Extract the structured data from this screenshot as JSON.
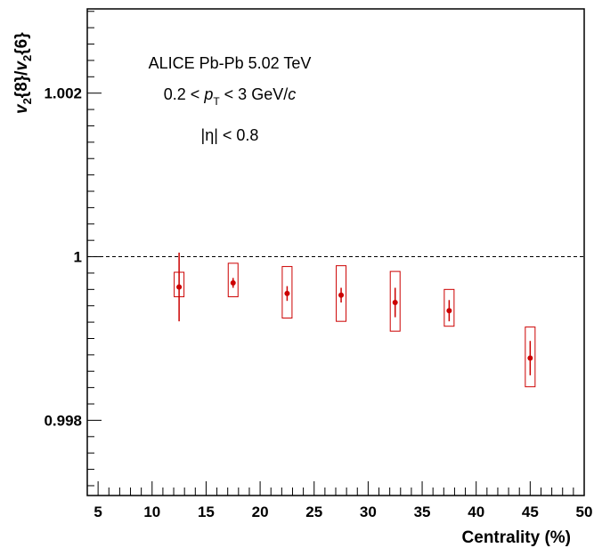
{
  "chart_data": {
    "type": "scatter",
    "xlabel": "Centrality (%)",
    "ylabel_parts": {
      "v1": "v",
      "sub1": "2",
      "arg1": "{8}/",
      "v2": "v",
      "sub2": "2",
      "arg2": "{6}"
    },
    "xlim": [
      4,
      50
    ],
    "ylim": [
      0.99708,
      1.00303
    ],
    "x_ticks": [
      5,
      10,
      15,
      20,
      25,
      30,
      35,
      40,
      45,
      50
    ],
    "x_tick_labels": [
      "5",
      "10",
      "15",
      "20",
      "25",
      "30",
      "35",
      "40",
      "45",
      "50"
    ],
    "y_ticks": [
      0.998,
      1,
      1.002
    ],
    "y_tick_labels": [
      "0.998",
      "1",
      "1.002"
    ],
    "reference_line": {
      "y": 1,
      "style": "dashed"
    },
    "annotations": {
      "line1": "ALICE Pb-Pb 5.02 TeV",
      "line2_pre": "0.2 < ",
      "line2_p": "p",
      "line2_sub": "T",
      "line2_mid": " < 3 GeV/",
      "line2_c": "c",
      "line3": "|η| < 0.8"
    },
    "series": [
      {
        "color": "#cc0000",
        "points": [
          {
            "x": 12.5,
            "y": 0.99963,
            "stat_err": 0.00042,
            "sys_low": 0.99951,
            "sys_high": 0.99981
          },
          {
            "x": 17.5,
            "y": 0.99968,
            "stat_err": 6e-05,
            "sys_low": 0.99951,
            "sys_high": 0.99992
          },
          {
            "x": 22.5,
            "y": 0.99955,
            "stat_err": 9e-05,
            "sys_low": 0.99925,
            "sys_high": 0.99988
          },
          {
            "x": 27.5,
            "y": 0.99953,
            "stat_err": 9e-05,
            "sys_low": 0.99921,
            "sys_high": 0.99989
          },
          {
            "x": 32.5,
            "y": 0.99944,
            "stat_err": 0.00018,
            "sys_low": 0.99909,
            "sys_high": 0.99982
          },
          {
            "x": 37.5,
            "y": 0.99934,
            "stat_err": 0.00013,
            "sys_low": 0.99915,
            "sys_high": 0.9996
          },
          {
            "x": 45,
            "y": 0.99876,
            "stat_err": 0.00021,
            "sys_low": 0.99841,
            "sys_high": 0.99914
          }
        ]
      }
    ]
  }
}
